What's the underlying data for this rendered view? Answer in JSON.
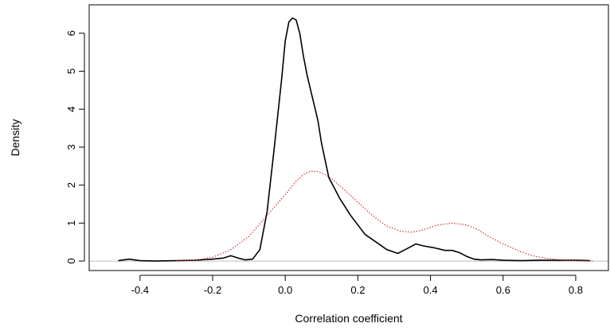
{
  "chart_data": {
    "type": "line",
    "title": "",
    "xlabel": "Correlation coefficient",
    "ylabel": "Density",
    "xlim": [
      -0.54,
      0.89
    ],
    "ylim": [
      -0.25,
      6.75
    ],
    "x_ticks": [
      -0.4,
      -0.2,
      0.0,
      0.2,
      0.4,
      0.6,
      0.8
    ],
    "x_tick_labels": [
      "-0.4",
      "-0.2",
      "0.0",
      "0.2",
      "0.4",
      "0.6",
      "0.8"
    ],
    "y_ticks": [
      0,
      1,
      2,
      3,
      4,
      5,
      6
    ],
    "y_tick_labels": [
      "0",
      "1",
      "2",
      "3",
      "4",
      "5",
      "6"
    ],
    "baseline": {
      "y": 0,
      "color": "#bbbbbb"
    },
    "grid": false,
    "legend": "none",
    "series": [
      {
        "style": "solid",
        "color": "#000000",
        "x": [
          -0.46,
          -0.43,
          -0.4,
          -0.36,
          -0.3,
          -0.25,
          -0.2,
          -0.17,
          -0.15,
          -0.13,
          -0.11,
          -0.09,
          -0.07,
          -0.05,
          -0.03,
          -0.01,
          0.0,
          0.01,
          0.02,
          0.03,
          0.04,
          0.05,
          0.06,
          0.07,
          0.08,
          0.09,
          0.1,
          0.12,
          0.15,
          0.18,
          0.2,
          0.22,
          0.25,
          0.28,
          0.31,
          0.33,
          0.36,
          0.38,
          0.41,
          0.44,
          0.46,
          0.48,
          0.5,
          0.52,
          0.54,
          0.57,
          0.6,
          0.65,
          0.7,
          0.75,
          0.8,
          0.84
        ],
        "y": [
          0.01,
          0.05,
          0.01,
          0.0,
          0.01,
          0.02,
          0.05,
          0.08,
          0.14,
          0.08,
          0.03,
          0.05,
          0.3,
          1.3,
          3.0,
          4.8,
          5.8,
          6.3,
          6.4,
          6.35,
          6.0,
          5.4,
          4.9,
          4.5,
          4.1,
          3.7,
          3.1,
          2.2,
          1.65,
          1.2,
          0.95,
          0.7,
          0.5,
          0.3,
          0.2,
          0.3,
          0.45,
          0.4,
          0.35,
          0.28,
          0.28,
          0.22,
          0.12,
          0.05,
          0.03,
          0.04,
          0.02,
          0.01,
          0.02,
          0.02,
          0.02,
          0.01
        ]
      },
      {
        "style": "dotted",
        "color": "#cc3333",
        "x": [
          -0.3,
          -0.25,
          -0.2,
          -0.15,
          -0.1,
          -0.05,
          0.0,
          0.03,
          0.05,
          0.07,
          0.09,
          0.11,
          0.13,
          0.16,
          0.2,
          0.24,
          0.28,
          0.32,
          0.35,
          0.38,
          0.42,
          0.46,
          0.5,
          0.53,
          0.56,
          0.6,
          0.64,
          0.68,
          0.72,
          0.76,
          0.8,
          0.85
        ],
        "y": [
          0.01,
          0.02,
          0.1,
          0.3,
          0.65,
          1.2,
          1.75,
          2.1,
          2.28,
          2.37,
          2.36,
          2.28,
          2.15,
          1.9,
          1.55,
          1.2,
          0.92,
          0.78,
          0.76,
          0.82,
          0.95,
          1.0,
          0.95,
          0.83,
          0.65,
          0.45,
          0.28,
          0.14,
          0.07,
          0.03,
          0.01,
          0.0
        ]
      }
    ]
  }
}
